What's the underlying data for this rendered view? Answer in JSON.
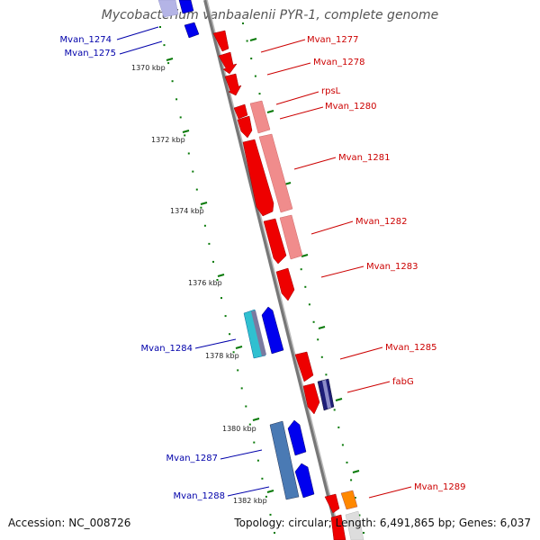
{
  "title": "Mycobacterium vanbaalenii PYR-1, complete genome",
  "footer": {
    "accession": "Accession: NC_008726",
    "summary": "Topology: circular; Length: 6,491,865 bp; Genes: 6,037"
  },
  "colors": {
    "forward_label": "#cc0000",
    "reverse_label": "#0000aa",
    "forward_gene": "#ee0000",
    "reverse_gene": "#0000ee",
    "forward_gene_light": "#f08c8c",
    "tick": "#0a7a0a",
    "backbone": "#8c8c8c",
    "orange_gene": "#ff8800"
  },
  "ticks": [
    "1370 kbp",
    "1372 kbp",
    "1374 kbp",
    "1376 kbp",
    "1378 kbp",
    "1380 kbp",
    "1382 kbp"
  ],
  "genes_forward": [
    "Mvan_1277",
    "Mvan_1278",
    "rpsL",
    "Mvan_1280",
    "Mvan_1281",
    "Mvan_1282",
    "Mvan_1283",
    "Mvan_1285",
    "fabG",
    "Mvan_1289"
  ],
  "genes_reverse": [
    "Mvan_1274",
    "Mvan_1275",
    "Mvan_1284",
    "Mvan_1287",
    "Mvan_1288"
  ]
}
